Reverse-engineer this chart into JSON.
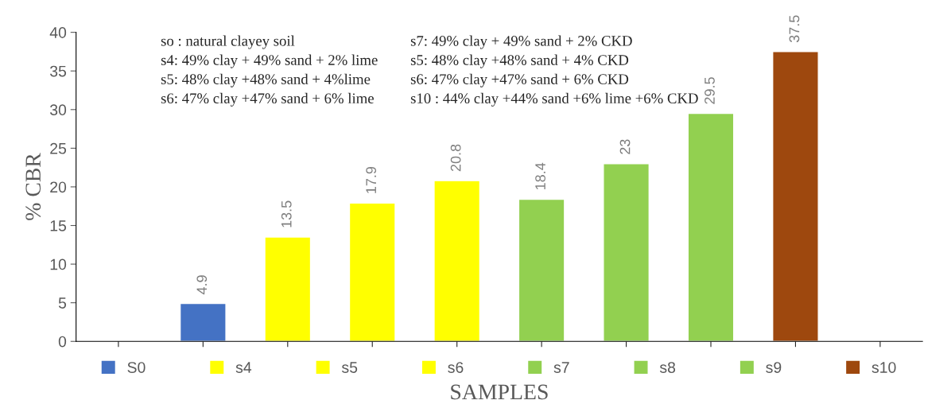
{
  "chart_data": {
    "type": "bar",
    "xlabel": "SAMPLES",
    "ylabel": "% CBR",
    "categories": [
      null,
      null,
      null,
      null,
      null,
      null,
      null,
      null,
      null,
      null
    ],
    "series": [
      {
        "name": "S0",
        "color": "#4472c4",
        "values": [
          null,
          4.9,
          null,
          null,
          null,
          null,
          null,
          null,
          null,
          null
        ]
      },
      {
        "name": "s4",
        "color": "#ffff00",
        "values": [
          null,
          null,
          13.5,
          null,
          null,
          null,
          null,
          null,
          null,
          null
        ]
      },
      {
        "name": "s5",
        "color": "#ffff00",
        "values": [
          null,
          null,
          null,
          17.9,
          null,
          null,
          null,
          null,
          null,
          null
        ]
      },
      {
        "name": "s6",
        "color": "#ffff00",
        "values": [
          null,
          null,
          null,
          null,
          20.8,
          null,
          null,
          null,
          null,
          null
        ]
      },
      {
        "name": "s7",
        "color": "#92d050",
        "values": [
          null,
          null,
          null,
          null,
          null,
          18.4,
          null,
          null,
          null,
          null
        ]
      },
      {
        "name": "s8",
        "color": "#92d050",
        "values": [
          null,
          null,
          null,
          null,
          null,
          null,
          23,
          null,
          null,
          null
        ]
      },
      {
        "name": "s9",
        "color": "#92d050",
        "values": [
          null,
          null,
          null,
          null,
          null,
          null,
          null,
          29.5,
          null,
          null
        ]
      },
      {
        "name": "s10",
        "color": "#9e480e",
        "values": [
          null,
          null,
          null,
          null,
          null,
          null,
          null,
          null,
          37.5,
          null
        ]
      }
    ],
    "ylim": [
      0,
      40
    ],
    "yticks": [
      0,
      5,
      10,
      15,
      20,
      25,
      30,
      35,
      40
    ],
    "data_labels": true,
    "grid": false,
    "legend": "bottom",
    "annotations": [
      "so : natural clayey soil",
      "s4: 49% clay + 49% sand + 2% lime",
      "s5: 48% clay +48% sand + 4%lime",
      "s6: 47% clay +47% sand + 6% lime",
      "s7: 49% clay + 49% sand + 2% CKD",
      "s5: 48% clay +48% sand + 4% CKD",
      "s6: 47% clay +47% sand + 6% CKD",
      "s10 : 44% clay +44% sand +6% lime +6% CKD"
    ]
  }
}
